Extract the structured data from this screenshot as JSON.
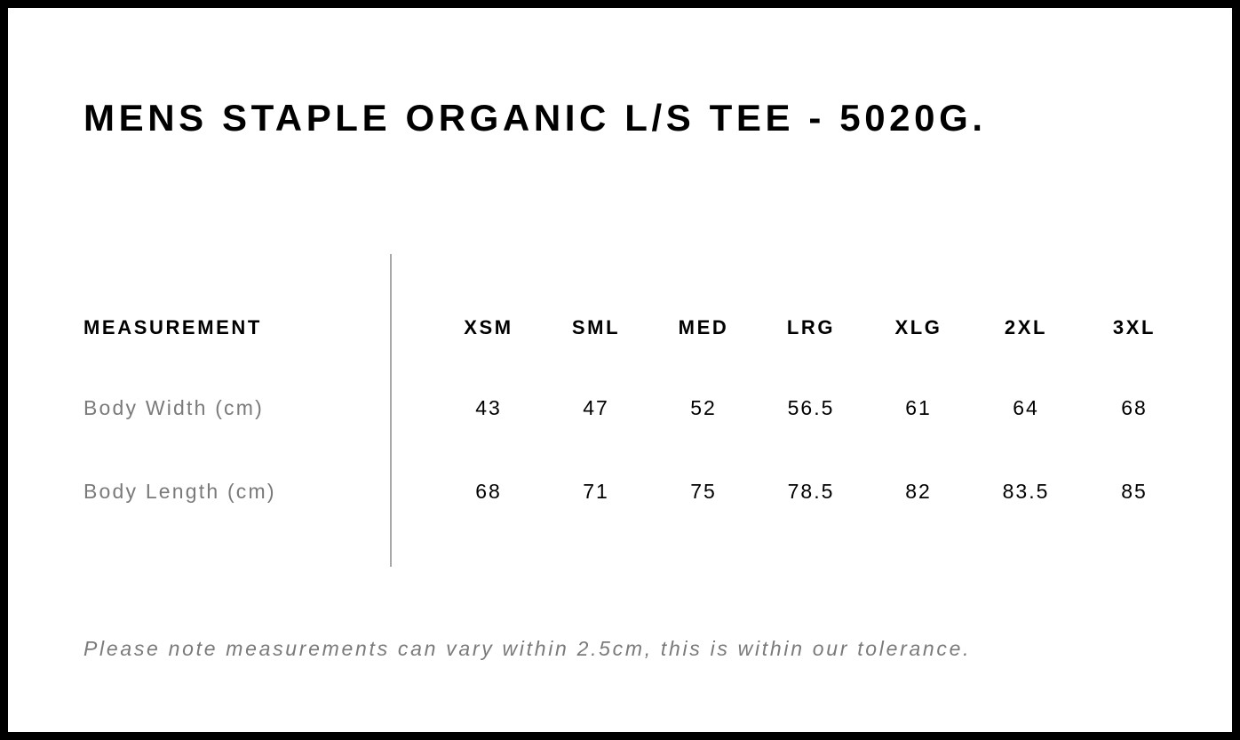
{
  "title": "MENS STAPLE ORGANIC L/S TEE - 5020G.",
  "table": {
    "header_label": "MEASUREMENT",
    "sizes": [
      "XSM",
      "SML",
      "MED",
      "LRG",
      "XLG",
      "2XL",
      "3XL"
    ],
    "rows": [
      {
        "label": "Body Width (cm)",
        "values": [
          "43",
          "47",
          "52",
          "56.5",
          "61",
          "64",
          "68"
        ]
      },
      {
        "label": "Body Length (cm)",
        "values": [
          "68",
          "71",
          "75",
          "78.5",
          "82",
          "83.5",
          "85"
        ]
      }
    ]
  },
  "note": "Please note measurements can vary within 2.5cm, this is within our tolerance."
}
